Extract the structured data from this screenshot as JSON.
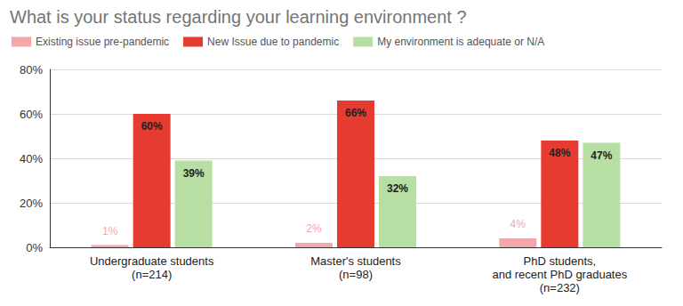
{
  "chart_data": {
    "type": "bar",
    "title": "What is your status regarding your learning environment ?",
    "categories": [
      "Undergraduate students\n(n=214)",
      "Master's students\n(n=98)",
      "PhD students,\nand recent PhD graduates\n(n=232)"
    ],
    "series": [
      {
        "name": "Existing issue pre-pandemic",
        "color": "#f2a7ab",
        "values": [
          1,
          2,
          4
        ],
        "value_labels": [
          "1%",
          "2%",
          "4%"
        ]
      },
      {
        "name": "New Issue due to pandemic",
        "color": "#e63b30",
        "values": [
          60,
          66,
          48
        ],
        "value_labels": [
          "60%",
          "66%",
          "48%"
        ]
      },
      {
        "name": "My environment is adequate or N/A",
        "color": "#b8dfa3",
        "values": [
          39,
          32,
          47
        ],
        "value_labels": [
          "39%",
          "32%",
          "47%"
        ]
      }
    ],
    "ylim": [
      0,
      80
    ],
    "yticks": [
      {
        "value": 0,
        "label": "0%"
      },
      {
        "value": 20,
        "label": "20%"
      },
      {
        "value": 40,
        "label": "40%"
      },
      {
        "value": 60,
        "label": "60%"
      },
      {
        "value": 80,
        "label": "80%"
      }
    ],
    "grid": true,
    "legend": "top-left",
    "data_labels": true
  }
}
